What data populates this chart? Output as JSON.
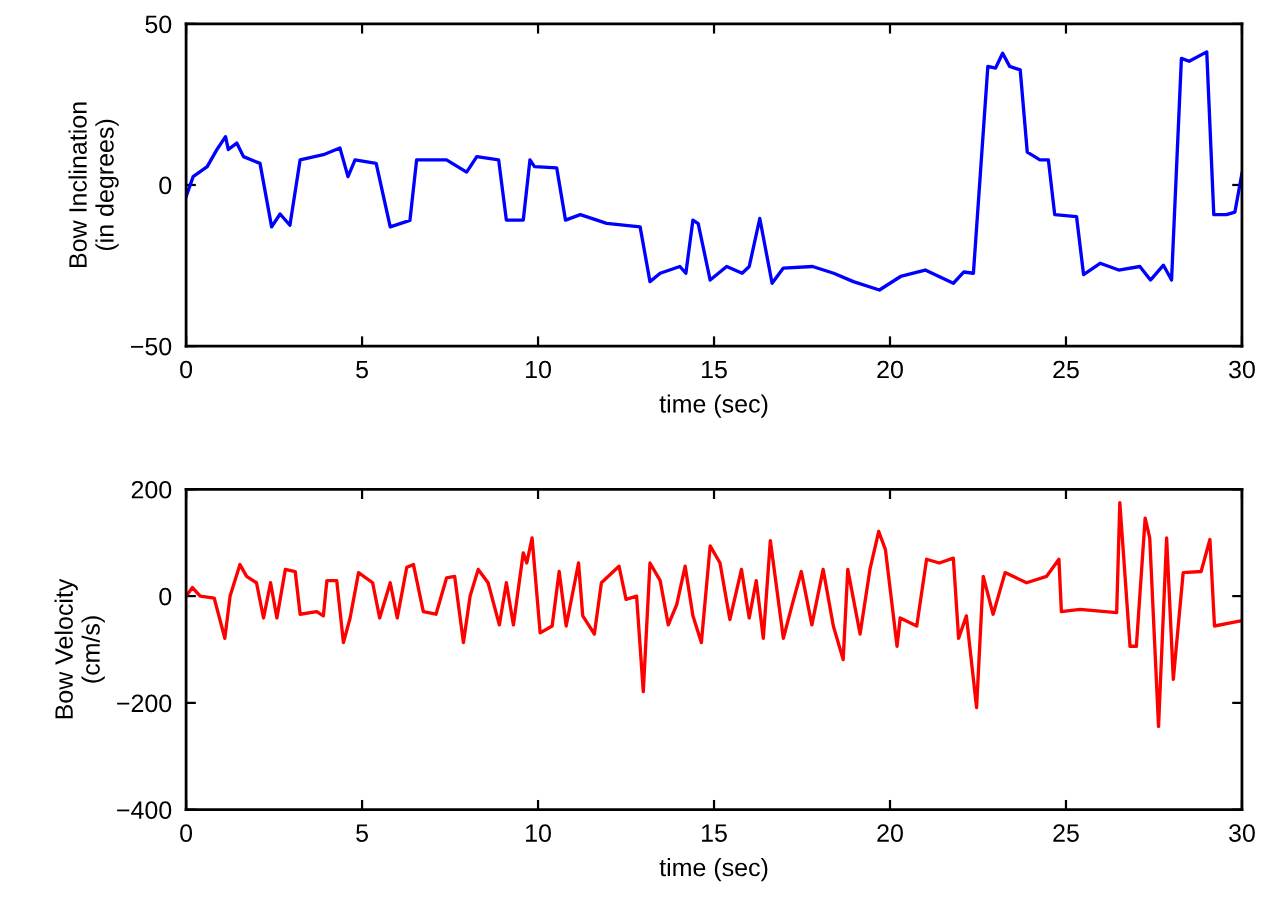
{
  "chart_data": [
    {
      "type": "line",
      "xlabel": "time (sec)",
      "ylabel": "Bow Inclination\n(in degrees)",
      "series": [
        {
          "color": "#0000ff",
          "x": [
            0,
            0.2,
            0.6,
            0.87,
            1.12,
            1.2,
            1.44,
            1.63,
            2.1,
            2.43,
            2.67,
            2.95,
            3.24,
            3.9,
            4.37,
            4.6,
            4.8,
            5.4,
            5.8,
            6.36,
            6.55,
            7.4,
            7.97,
            8.26,
            8.88,
            9.1,
            9.58,
            9.77,
            9.9,
            10.53,
            10.78,
            11.2,
            11.95,
            12.9,
            13.18,
            13.47,
            14.03,
            14.2,
            14.4,
            14.55,
            14.89,
            15.36,
            15.8,
            16.0,
            16.3,
            16.65,
            16.97,
            17.8,
            18.4,
            18.96,
            19.7,
            20.3,
            21.0,
            21.8,
            22.1,
            22.37,
            22.78,
            23.0,
            23.2,
            23.4,
            23.7,
            23.9,
            24.26,
            24.5,
            24.68,
            25.3,
            25.5,
            25.97,
            26.5,
            27.1,
            27.4,
            27.77,
            28.0,
            28.28,
            28.5,
            29.0,
            29.2,
            29.56,
            29.8,
            30
          ],
          "values": [
            -3.6,
            2.6,
            5.7,
            10.9,
            15,
            11,
            13,
            8.8,
            6.7,
            -13,
            -9,
            -12.5,
            7.8,
            9.4,
            11.5,
            2.6,
            7.8,
            6.7,
            -13,
            -11,
            7.8,
            7.8,
            4,
            8.8,
            7.8,
            -10.9,
            -10.9,
            7.8,
            5.7,
            5.3,
            -10.9,
            -9.2,
            -11.9,
            -13,
            -30,
            -27.4,
            -25.3,
            -27.4,
            -10.9,
            -12,
            -29.5,
            -25.3,
            -27.4,
            -25.3,
            -10.4,
            -30.5,
            -25.8,
            -25.3,
            -27.4,
            -30,
            -32.6,
            -28.4,
            -26.4,
            -30.5,
            -27,
            -27.4,
            36.8,
            36.3,
            40.9,
            36.8,
            35.7,
            10.2,
            7.8,
            7.8,
            -9.2,
            -9.8,
            -27.8,
            -24.3,
            -26.4,
            -25.3,
            -29.5,
            -24.9,
            -29.5,
            39.3,
            38.4,
            41.3,
            -9.2,
            -9.2,
            -8.4,
            3.6
          ]
        }
      ],
      "xlim": [
        0,
        30
      ],
      "xticks": [
        0,
        5,
        10,
        15,
        20,
        25,
        30
      ],
      "ylim": [
        -50,
        50
      ],
      "yticks": [
        {
          "value": -50,
          "label": "−50"
        },
        0,
        50
      ]
    },
    {
      "type": "line",
      "xlabel": "time (sec)",
      "ylabel": "Bow Velocity\n(cm/s)",
      "series": [
        {
          "color": "#ff0000",
          "x": [
            0,
            0.18,
            0.4,
            0.8,
            1.1,
            1.25,
            1.53,
            1.72,
            2.0,
            2.2,
            2.4,
            2.58,
            2.82,
            3.1,
            3.24,
            3.71,
            3.9,
            4.0,
            4.28,
            4.47,
            4.66,
            4.9,
            5.3,
            5.5,
            5.8,
            6.0,
            6.27,
            6.46,
            6.74,
            7.1,
            7.4,
            7.63,
            7.88,
            8.07,
            8.3,
            8.58,
            8.9,
            9.1,
            9.3,
            9.58,
            9.68,
            9.83,
            10.06,
            10.4,
            10.6,
            10.8,
            11.15,
            11.27,
            11.6,
            11.8,
            12.3,
            12.5,
            12.8,
            12.99,
            13.18,
            13.47,
            13.7,
            13.94,
            14.18,
            14.4,
            14.64,
            14.89,
            15.17,
            15.45,
            15.78,
            16.0,
            16.2,
            16.4,
            16.6,
            16.97,
            17.25,
            17.48,
            17.78,
            18.1,
            18.39,
            18.67,
            18.8,
            19.15,
            19.43,
            19.68,
            19.87,
            20.2,
            20.29,
            20.76,
            21.04,
            21.4,
            21.8,
            21.95,
            22.17,
            22.46,
            22.65,
            22.93,
            23.27,
            23.88,
            24.45,
            24.8,
            24.87,
            25.4,
            26.44,
            26.53,
            26.82,
            27.0,
            27.25,
            27.38,
            27.63,
            27.86,
            28.05,
            28.33,
            28.84,
            29.09,
            29.22,
            30
          ],
          "values": [
            0,
            16,
            0,
            -4,
            -79,
            0,
            59,
            37,
            25,
            -41,
            25,
            -41,
            50,
            46,
            -34,
            -29,
            -37,
            29,
            29,
            -87,
            -41,
            44,
            25,
            -41,
            25,
            -41,
            54,
            59,
            -29,
            -34,
            34,
            37,
            -87,
            0,
            50,
            25,
            -54,
            25,
            -54,
            81,
            62,
            109,
            -69,
            -56,
            46,
            -56,
            62,
            -37,
            -71,
            25,
            56,
            -6,
            0,
            -179,
            62,
            29,
            -54,
            -16,
            56,
            -37,
            -87,
            94,
            62,
            -44,
            50,
            -41,
            29,
            -79,
            104,
            -79,
            -9,
            46,
            -54,
            50,
            -56,
            -119,
            50,
            -71,
            50,
            121,
            87,
            -94,
            -41,
            -56,
            69,
            62,
            71,
            -79,
            -37,
            -209,
            37,
            -34,
            44,
            25,
            37,
            69,
            -29,
            -25,
            -31,
            175,
            -94,
            -94,
            146,
            109,
            -244,
            109,
            -156,
            44,
            46,
            106,
            -56,
            -46
          ]
        }
      ],
      "xlim": [
        0,
        30
      ],
      "xticks": [
        0,
        5,
        10,
        15,
        20,
        25,
        30
      ],
      "ylim": [
        -400,
        200
      ],
      "yticks": [
        {
          "value": -400,
          "label": "−400"
        },
        {
          "value": -200,
          "label": "−200"
        },
        0,
        200
      ]
    }
  ]
}
